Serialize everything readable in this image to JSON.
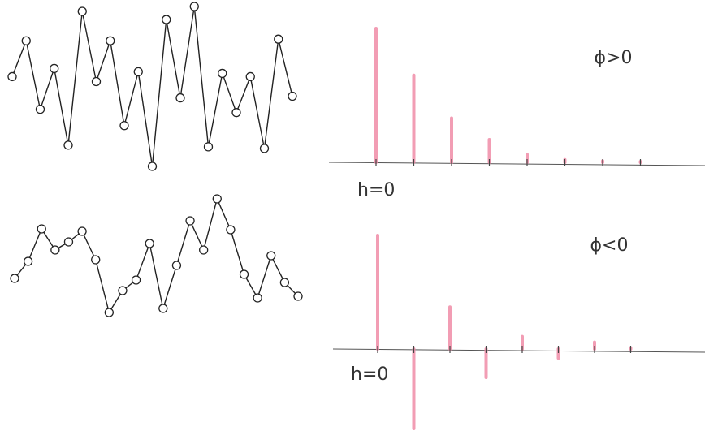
{
  "chart_data": [
    {
      "type": "line",
      "color": "#222",
      "values": [
        5.8,
        8,
        3.8,
        6.3,
        1.6,
        9.8,
        5.5,
        8,
        2.8,
        6.1,
        0.3,
        9.3,
        4.5,
        10.1,
        1.5,
        6,
        3.6,
        5.8,
        1.4,
        8.1,
        4.6
      ]
    },
    {
      "type": "stem",
      "color": "#f08ca8",
      "annotation": "ϕ>0",
      "label": "h=0",
      "values": [
        1,
        0.65,
        0.33,
        0.17,
        0.06,
        0.02,
        0.01,
        0.005
      ]
    },
    {
      "type": "line",
      "color": "#222",
      "values": [
        2.85,
        3.9,
        5.9,
        4.6,
        5.1,
        5.75,
        4,
        0.75,
        2.1,
        2.75,
        5,
        1,
        3.65,
        6.4,
        4.6,
        7.75,
        5.85,
        3.1,
        1.65,
        4.25,
        2.6,
        1.75
      ]
    },
    {
      "type": "stem",
      "color": "#f08ca8",
      "annotation": "ϕ<0",
      "label": "h=0",
      "values": [
        1,
        -0.7,
        0.37,
        -0.25,
        0.11,
        -0.08,
        0.06,
        0.01
      ]
    }
  ]
}
